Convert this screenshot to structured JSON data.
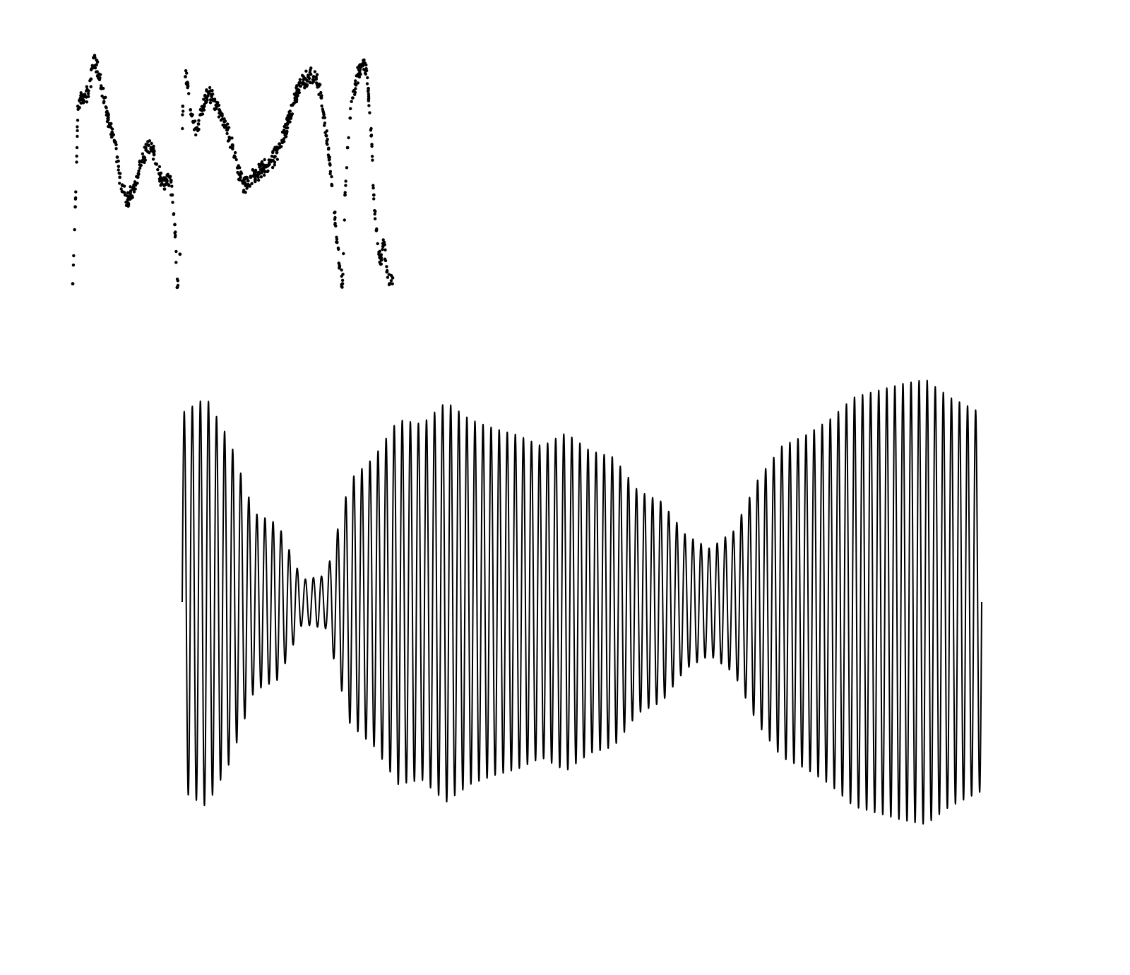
{
  "chart_data": [
    {
      "type": "scatter",
      "title": "",
      "xlabel": "",
      "ylabel": "",
      "axes_visible": false,
      "grid": false,
      "marker_color": "#000000",
      "series": [
        {
          "x": [
            0.0,
            0.008,
            0.016,
            0.025,
            0.033,
            0.041,
            0.049,
            0.057,
            0.065,
            0.074,
            0.082,
            0.09,
            0.098,
            0.106,
            0.115,
            0.123,
            0.131,
            0.139,
            0.147,
            0.155,
            0.164,
            0.172,
            0.18,
            0.188,
            0.196,
            0.205,
            0.213,
            0.221,
            0.229,
            0.237,
            0.245,
            0.254,
            0.262,
            0.27,
            0.278,
            0.286,
            0.294,
            0.303,
            0.311,
            0.319,
            0.327,
            0.335,
            0.344,
            0.352,
            0.36,
            0.368,
            0.376,
            0.384,
            0.393,
            0.401,
            0.409,
            0.417,
            0.425,
            0.434,
            0.442,
            0.45,
            0.458,
            0.466,
            0.474,
            0.483,
            0.491,
            0.499,
            0.507,
            0.515,
            0.524,
            0.532,
            0.54,
            0.548,
            0.556,
            0.564,
            0.573,
            0.581,
            0.589,
            0.597,
            0.605,
            0.614,
            0.622,
            0.63,
            0.638,
            0.646,
            0.654,
            0.663,
            0.671,
            0.679,
            0.687,
            0.695,
            0.703,
            0.712,
            0.72,
            0.728,
            0.736,
            0.744,
            0.753,
            0.761,
            0.769,
            0.777,
            0.785,
            0.793,
            0.802,
            0.81,
            0.818,
            0.826,
            0.834,
            0.843,
            0.851,
            0.859,
            0.867,
            0.875,
            0.883,
            0.892,
            0.9,
            0.908,
            0.916,
            0.924,
            0.933,
            0.941,
            0.949,
            0.957,
            0.965,
            0.973,
            0.982,
            0.99,
            1.0
          ],
          "y": [
            -0.95,
            -0.3,
            0.55,
            0.62,
            0.58,
            0.63,
            0.68,
            0.78,
            0.96,
            0.9,
            0.82,
            0.7,
            0.62,
            0.5,
            0.4,
            0.33,
            0.25,
            0.12,
            -0.05,
            -0.12,
            -0.2,
            -0.24,
            -0.18,
            -0.15,
            -0.1,
            -0.02,
            0.05,
            0.12,
            0.18,
            0.22,
            0.2,
            0.14,
            0.06,
            -0.02,
            -0.08,
            -0.12,
            -0.1,
            -0.05,
            -0.2,
            -0.45,
            -0.98,
            -0.7,
            0.55,
            0.8,
            0.72,
            0.52,
            0.42,
            0.36,
            0.4,
            0.48,
            0.55,
            0.62,
            0.66,
            0.64,
            0.6,
            0.55,
            0.52,
            0.48,
            0.42,
            0.35,
            0.28,
            0.2,
            0.12,
            0.03,
            -0.05,
            -0.1,
            -0.12,
            -0.08,
            -0.05,
            -0.04,
            -0.03,
            -0.01,
            0.01,
            0.03,
            0.05,
            0.07,
            0.09,
            0.12,
            0.16,
            0.2,
            0.26,
            0.33,
            0.4,
            0.48,
            0.56,
            0.62,
            0.68,
            0.72,
            0.75,
            0.78,
            0.8,
            0.82,
            0.8,
            0.78,
            0.72,
            0.62,
            0.48,
            0.3,
            0.1,
            -0.12,
            -0.35,
            -0.6,
            -0.8,
            -0.95,
            -0.2,
            0.2,
            0.45,
            0.62,
            0.74,
            0.82,
            0.88,
            0.9,
            0.85,
            0.7,
            0.3,
            -0.2,
            -0.5,
            -0.7,
            -0.75,
            -0.6,
            -0.85,
            -0.95,
            -0.9
          ]
        }
      ]
    },
    {
      "type": "line",
      "title": "",
      "xlabel": "",
      "ylabel": "",
      "axes_visible": false,
      "grid": false,
      "line_color": "#000000",
      "carrier_cycles": 99,
      "series": [
        {
          "envelope_x": [
            0.0,
            0.03,
            0.06,
            0.09,
            0.12,
            0.15,
            0.18,
            0.21,
            0.24,
            0.27,
            0.3,
            0.33,
            0.36,
            0.39,
            0.42,
            0.45,
            0.48,
            0.51,
            0.54,
            0.57,
            0.6,
            0.63,
            0.66,
            0.69,
            0.72,
            0.75,
            0.78,
            0.81,
            0.84,
            0.87,
            0.9,
            0.93,
            0.96,
            1.0
          ],
          "envelope_amplitude": [
            0.85,
            0.92,
            0.72,
            0.4,
            0.35,
            0.1,
            0.12,
            0.55,
            0.65,
            0.82,
            0.8,
            0.9,
            0.82,
            0.78,
            0.75,
            0.7,
            0.76,
            0.68,
            0.65,
            0.5,
            0.45,
            0.3,
            0.24,
            0.32,
            0.55,
            0.7,
            0.75,
            0.82,
            0.92,
            0.95,
            0.98,
            1.0,
            0.92,
            0.85
          ]
        }
      ]
    }
  ]
}
